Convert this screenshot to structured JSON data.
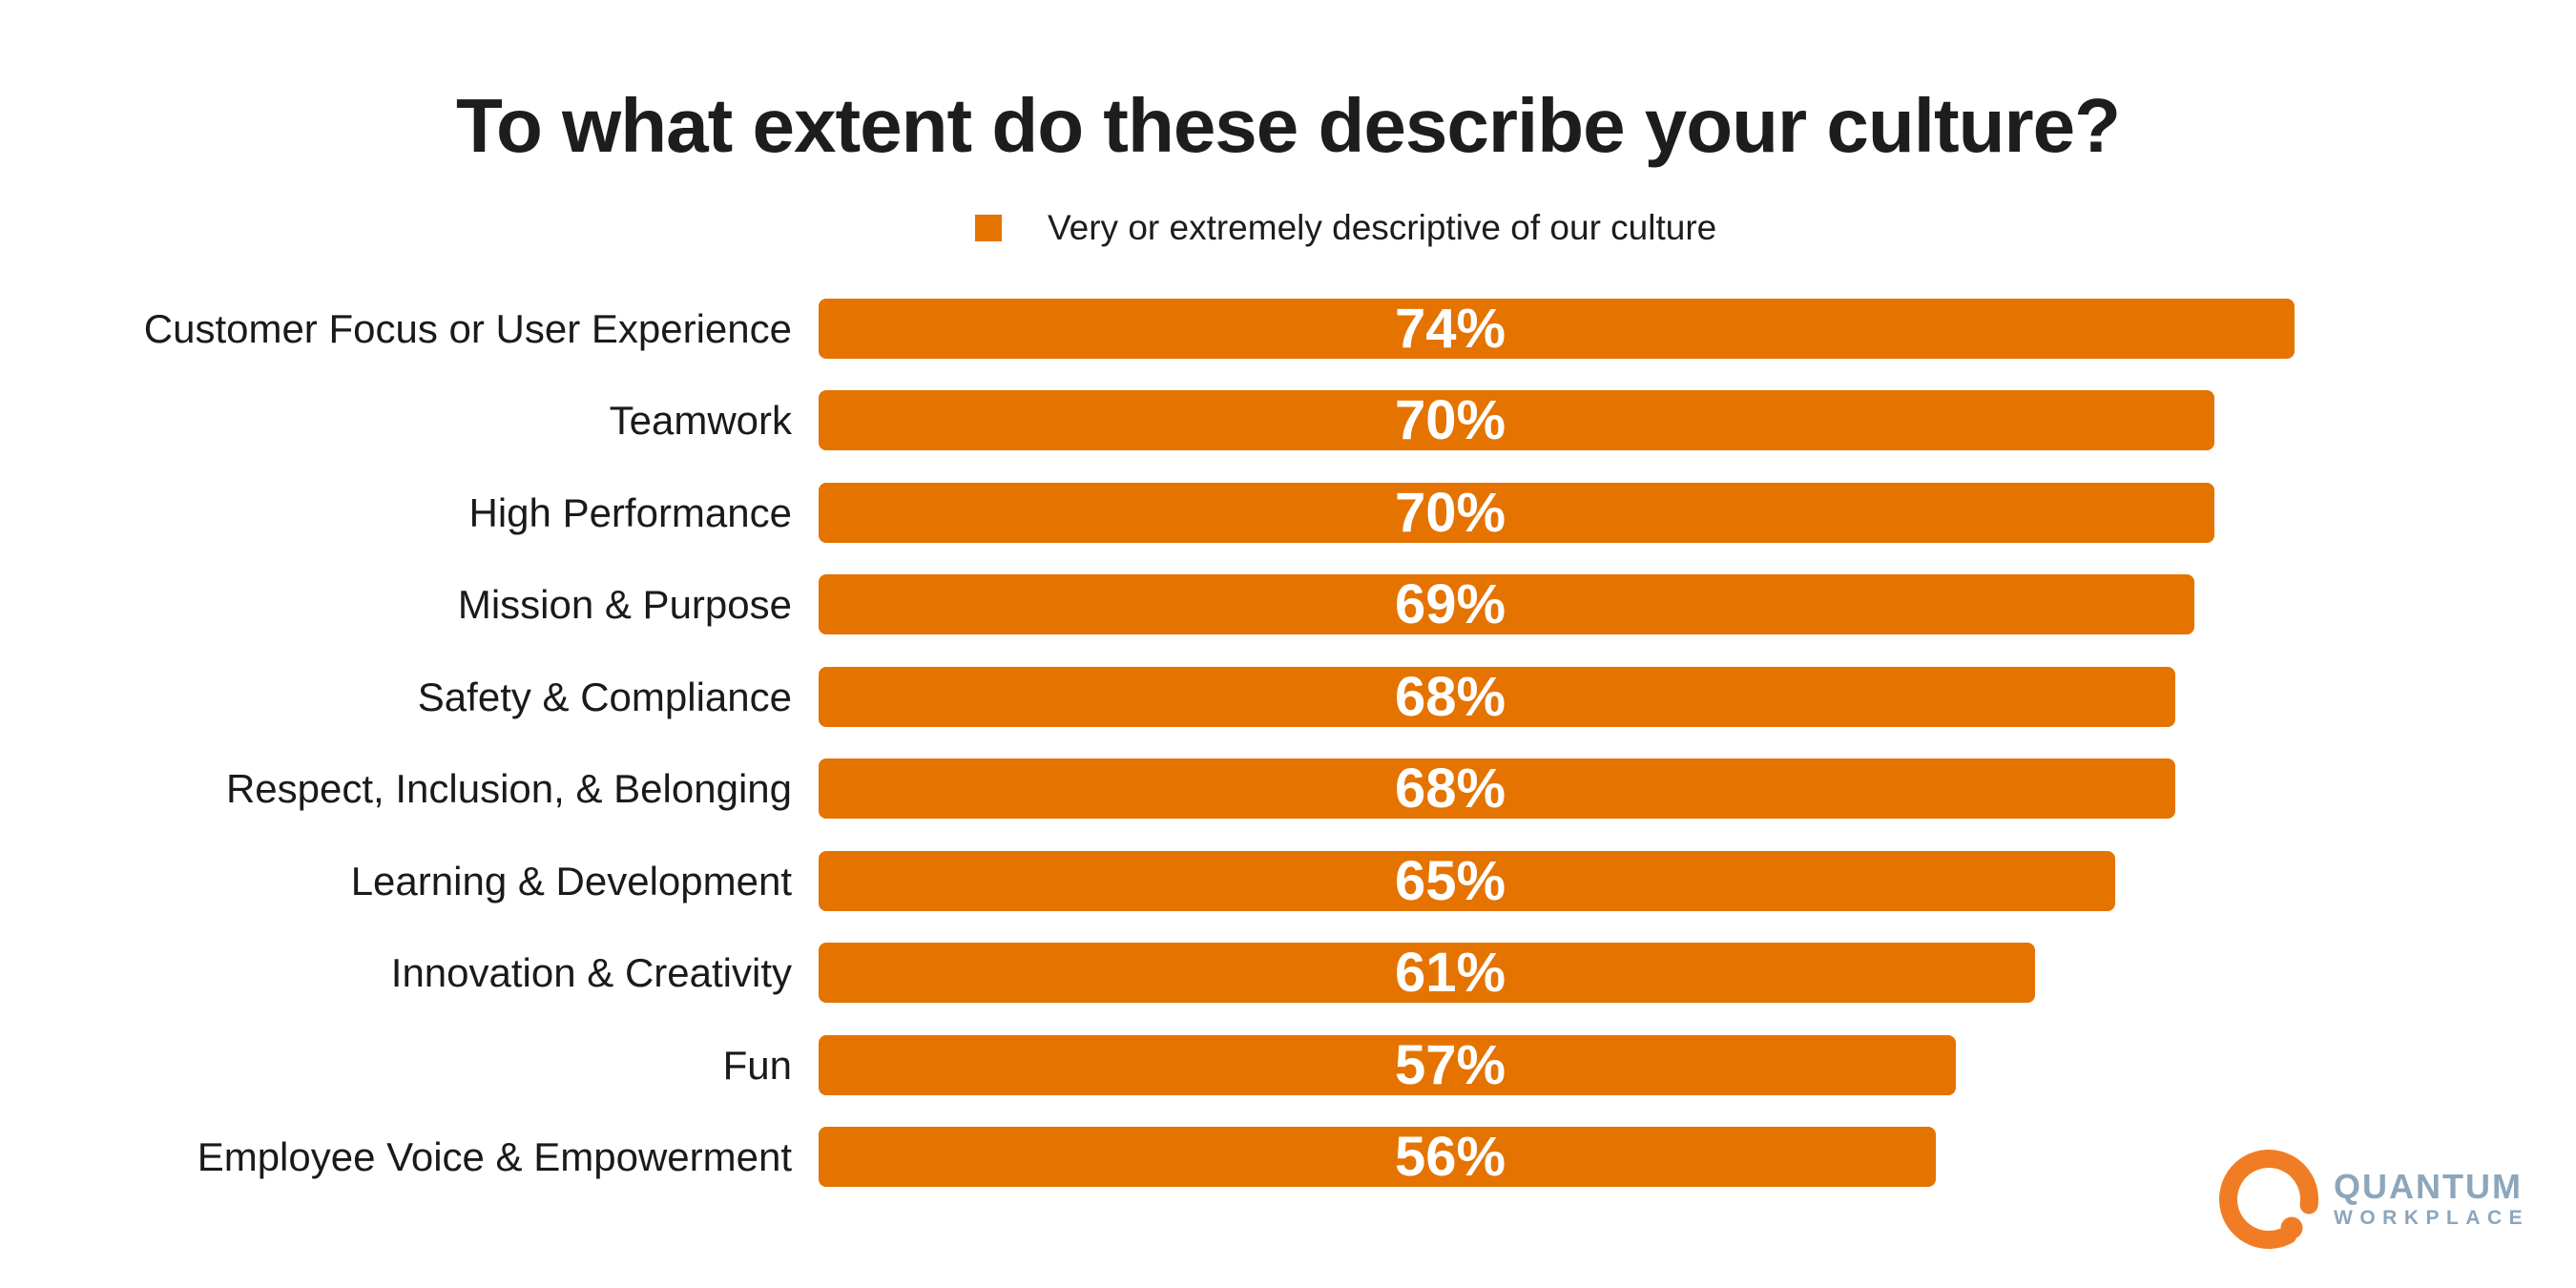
{
  "title": "To what extent do these describe your culture?",
  "legend": {
    "label": "Very or extremely descriptive of our culture",
    "marker_color": "#E57300"
  },
  "chart_data": {
    "type": "bar",
    "orientation": "horizontal",
    "title": "To what extent do these describe your culture?",
    "series_name": "Very or extremely descriptive of our culture",
    "categories": [
      "Customer Focus or User Experience",
      "Teamwork",
      "High Performance",
      "Mission & Purpose",
      "Safety & Compliance",
      "Respect, Inclusion, & Belonging",
      "Learning & Development",
      "Innovation & Creativity",
      "Fun",
      "Employee Voice & Empowerment"
    ],
    "values": [
      74,
      70,
      70,
      69,
      68,
      68,
      65,
      61,
      57,
      56
    ],
    "value_suffix": "%",
    "xlim": [
      0,
      100
    ],
    "grid": false,
    "legend_position": "top-center",
    "bar_color": "#E57300",
    "value_label_color": "#FFFFFF"
  },
  "logo": {
    "brand_top": "QUANTUM",
    "brand_bottom": "WORKPLACE",
    "mark_color": "#F07D25",
    "text_color": "#8CA6BC"
  }
}
